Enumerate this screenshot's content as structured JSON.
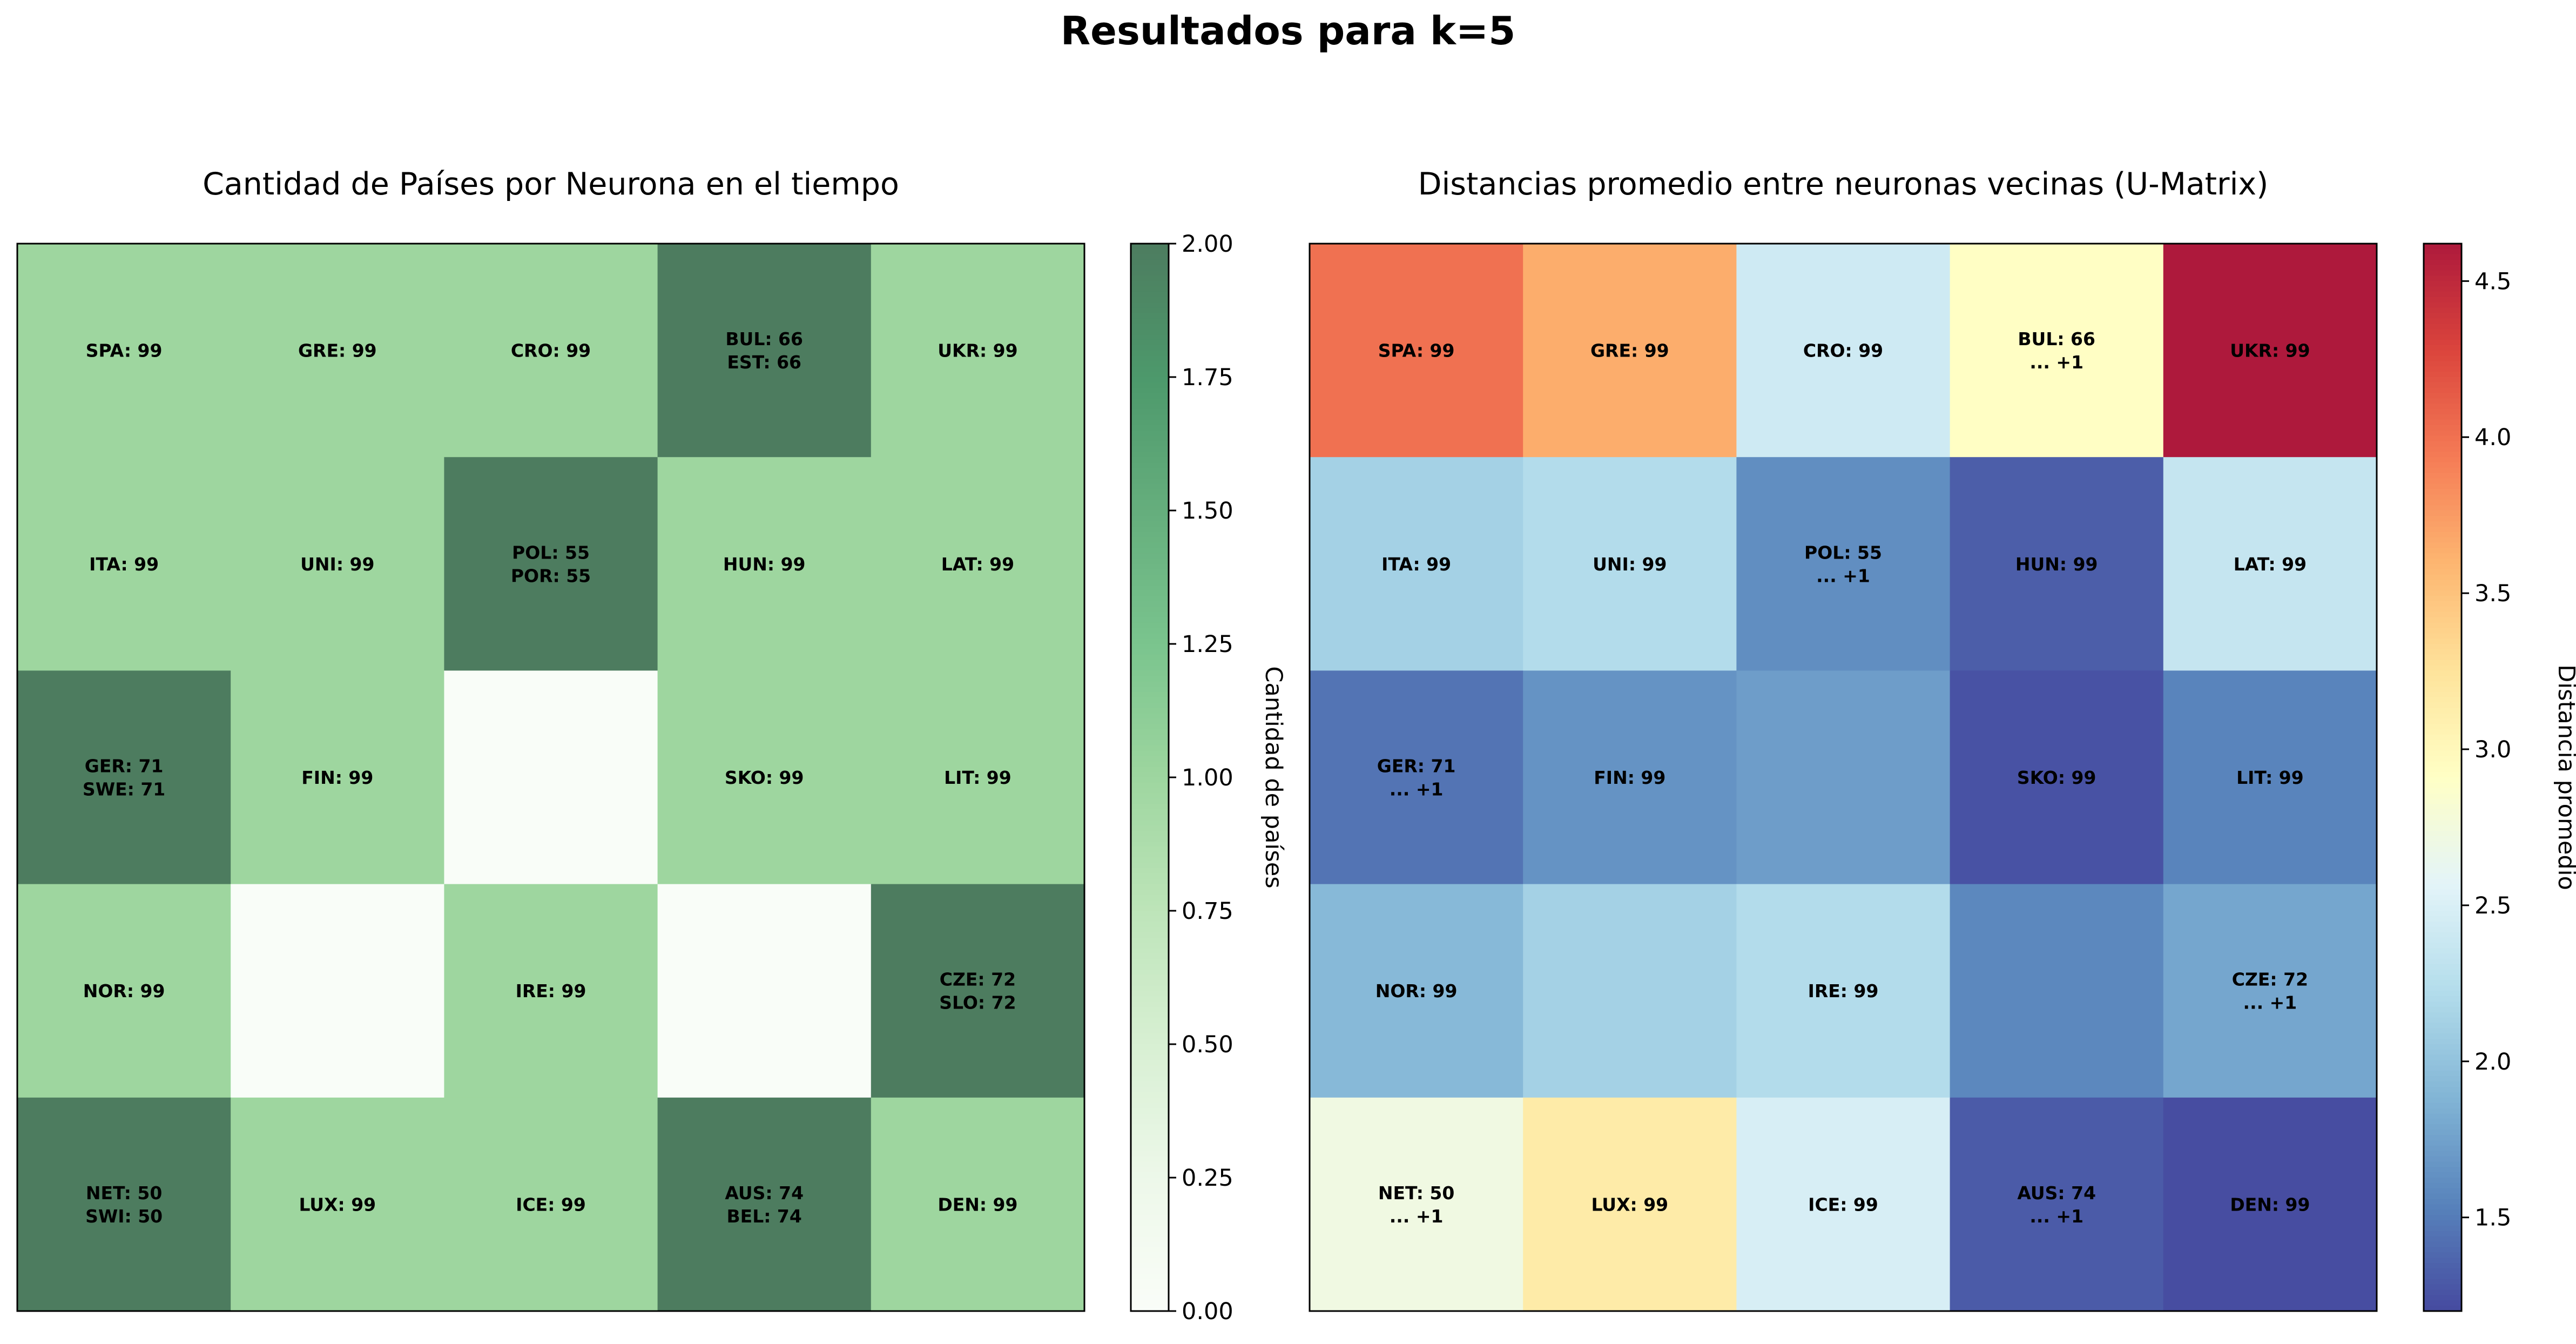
{
  "figure": {
    "title": "Resultados para k=5"
  },
  "chart_data": [
    {
      "type": "heatmap",
      "title": "Cantidad de Países por Neurona en el tiempo",
      "colorbar_label": "Cantidad de países",
      "colormap": "Greens",
      "alpha": 0.7,
      "vmin": 0,
      "vmax": 2,
      "colorbar_ticks": [
        "0.00",
        "0.25",
        "0.50",
        "0.75",
        "1.00",
        "1.25",
        "1.50",
        "1.75",
        "2.00"
      ],
      "grid": [
        [
          1,
          1,
          1,
          2,
          1
        ],
        [
          1,
          1,
          2,
          1,
          1
        ],
        [
          2,
          1,
          0,
          1,
          1
        ],
        [
          1,
          0,
          1,
          0,
          2
        ],
        [
          2,
          1,
          1,
          2,
          1
        ]
      ],
      "labels": [
        [
          [
            "SPA: 99"
          ],
          [
            "GRE: 99"
          ],
          [
            "CRO: 99"
          ],
          [
            "BUL: 66",
            "EST: 66"
          ],
          [
            "UKR: 99"
          ]
        ],
        [
          [
            "ITA: 99"
          ],
          [
            "UNI: 99"
          ],
          [
            "POL: 55",
            "POR: 55"
          ],
          [
            "HUN: 99"
          ],
          [
            "LAT: 99"
          ]
        ],
        [
          [
            "GER: 71",
            "SWE: 71"
          ],
          [
            "FIN: 99"
          ],
          [],
          [
            "SKO: 99"
          ],
          [
            "LIT: 99"
          ]
        ],
        [
          [
            "NOR: 99"
          ],
          [],
          [
            "IRE: 99"
          ],
          [],
          [
            "CZE: 72",
            "SLO: 72"
          ]
        ],
        [
          [
            "NET: 50",
            "SWI: 50"
          ],
          [
            "LUX: 99"
          ],
          [
            "ICE: 99"
          ],
          [
            "AUS: 74",
            "BEL: 74"
          ],
          [
            "DEN: 99"
          ]
        ]
      ]
    },
    {
      "type": "heatmap",
      "title": "Distancias promedio entre neuronas vecinas (U-Matrix)",
      "colorbar_label": "Distancia promedio",
      "colormap": "RdYlBu_r",
      "alpha": 0.9,
      "vmin": 1.2,
      "vmax": 4.62,
      "colorbar_ticks": [
        "1.5",
        "2.0",
        "2.5",
        "3.0",
        "3.5",
        "4.0",
        "4.5"
      ],
      "grid": [
        [
          4.0,
          3.65,
          2.42,
          2.92,
          4.62
        ],
        [
          2.12,
          2.22,
          1.62,
          1.32,
          2.35
        ],
        [
          1.45,
          1.65,
          1.72,
          1.25,
          1.55
        ],
        [
          1.92,
          2.12,
          2.22,
          1.58,
          1.78
        ],
        [
          2.72,
          3.15,
          2.48,
          1.3,
          1.22
        ]
      ],
      "labels": [
        [
          [
            "SPA: 99"
          ],
          [
            "GRE: 99"
          ],
          [
            "CRO: 99"
          ],
          [
            "BUL: 66",
            "... +1"
          ],
          [
            "UKR: 99"
          ]
        ],
        [
          [
            "ITA: 99"
          ],
          [
            "UNI: 99"
          ],
          [
            "POL: 55",
            "... +1"
          ],
          [
            "HUN: 99"
          ],
          [
            "LAT: 99"
          ]
        ],
        [
          [
            "GER: 71",
            "... +1"
          ],
          [
            "FIN: 99"
          ],
          [],
          [
            "SKO: 99"
          ],
          [
            "LIT: 99"
          ]
        ],
        [
          [
            "NOR: 99"
          ],
          [],
          [
            "IRE: 99"
          ],
          [],
          [
            "CZE: 72",
            "... +1"
          ]
        ],
        [
          [
            "NET: 50",
            "... +1"
          ],
          [
            "LUX: 99"
          ],
          [
            "ICE: 99"
          ],
          [
            "AUS: 74",
            "... +1"
          ],
          [
            "DEN: 99"
          ]
        ]
      ]
    }
  ]
}
